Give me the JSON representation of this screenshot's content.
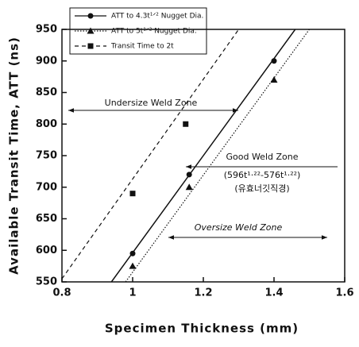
{
  "chart_data": {
    "type": "scatter",
    "xlabel": "Specimen Thickness    (mm)",
    "ylabel": "Available Transit Time, ATT  (ns)",
    "xlim": [
      0.8,
      1.6
    ],
    "xticks": [
      0.8,
      1,
      1.2,
      1.4,
      1.6
    ],
    "ylim": [
      550,
      950
    ],
    "yticks": [
      550,
      600,
      650,
      700,
      750,
      800,
      850,
      900,
      950
    ],
    "series": [
      {
        "name": "ATT to 4.3t¹ᐟ² Nugget Dia.",
        "color": "#111",
        "marker": "circle",
        "line_style": "solid",
        "x": [
          1,
          1.16,
          1.4
        ],
        "values": [
          595,
          720,
          900
        ],
        "line": {
          "x": [
            0.94,
            1.46
          ],
          "values": [
            550,
            950
          ]
        }
      },
      {
        "name": "ATT to 5t¹ᐟ² Nugget Dia.",
        "color": "#111",
        "marker": "triangle",
        "line_style": "dotted",
        "x": [
          1,
          1.16,
          1.4
        ],
        "values": [
          575,
          700,
          870
        ],
        "line": {
          "x": [
            0.98,
            1.5
          ],
          "values": [
            550,
            950
          ]
        }
      },
      {
        "name": "Transit Time to 2t",
        "color": "#111",
        "marker": "square",
        "line_style": "dashed",
        "x": [
          1,
          1.15
        ],
        "values": [
          690,
          800
        ],
        "line": {
          "x": [
            0.8,
            1.3
          ],
          "values": [
            555,
            950
          ]
        }
      }
    ],
    "annotations": [
      "Undersize Weld Zone",
      "Good Weld Zone",
      "(596t¹·²²-576t¹·²²)",
      "(유효너깃직경)",
      "Oversize Weld Zone"
    ]
  }
}
